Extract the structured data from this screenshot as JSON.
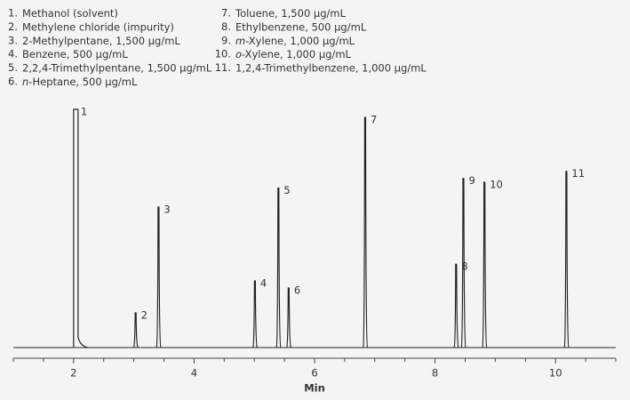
{
  "chart_data": {
    "type": "chromatogram",
    "xlabel": "Min",
    "xlim": [
      1,
      11
    ],
    "xticks": [
      2,
      4,
      6,
      8,
      10
    ],
    "minor_xticks": [
      1,
      1.5,
      2.5,
      3,
      3.5,
      4.5,
      5,
      5.5,
      6.5,
      7,
      7.5,
      8.5,
      9,
      9.5,
      10.5,
      11
    ],
    "ylim": [
      0,
      100
    ],
    "color": "#222222",
    "legend": [
      {
        "number": "1.",
        "name": "Methanol (solvent)"
      },
      {
        "number": "2.",
        "name": "Methylene chloride (impurity)"
      },
      {
        "number": "3.",
        "name": "2-Methylpentane, 1,500 µg/mL"
      },
      {
        "number": "4.",
        "name": "Benzene, 500 µg/mL"
      },
      {
        "number": "5.",
        "name": "2,2,4-Trimethylpentane, 1,500 µg/mL"
      },
      {
        "number": "6.",
        "italic": "n",
        "name": "-Heptane, 500 µg/mL"
      },
      {
        "number": "7.",
        "name": "Toluene, 1,500 µg/mL"
      },
      {
        "number": "8.",
        "name": "Ethylbenzene, 500 µg/mL"
      },
      {
        "number": "9.",
        "italic": "m",
        "name": "-Xylene, 1,000 µg/mL"
      },
      {
        "number": "10.",
        "italic": "o",
        "name": "-Xylene, 1,000 µg/mL"
      },
      {
        "number": "11.",
        "name": "1,2,4-Trimethylbenzene, 1,000 µg/mL"
      }
    ],
    "peaks": [
      {
        "label": "1",
        "time": 2.03,
        "height": 100
      },
      {
        "label": "2",
        "time": 3.03,
        "height": 14.6
      },
      {
        "label": "3",
        "time": 3.41,
        "height": 59
      },
      {
        "label": "4",
        "time": 5.01,
        "height": 28
      },
      {
        "label": "5",
        "time": 5.4,
        "height": 67
      },
      {
        "label": "6",
        "time": 5.57,
        "height": 25
      },
      {
        "label": "7",
        "time": 6.84,
        "height": 96.6
      },
      {
        "label": "8",
        "time": 8.35,
        "height": 35
      },
      {
        "label": "9",
        "time": 8.47,
        "height": 71
      },
      {
        "label": "10",
        "time": 8.82,
        "height": 69.4
      },
      {
        "label": "11",
        "time": 10.18,
        "height": 74
      }
    ]
  }
}
